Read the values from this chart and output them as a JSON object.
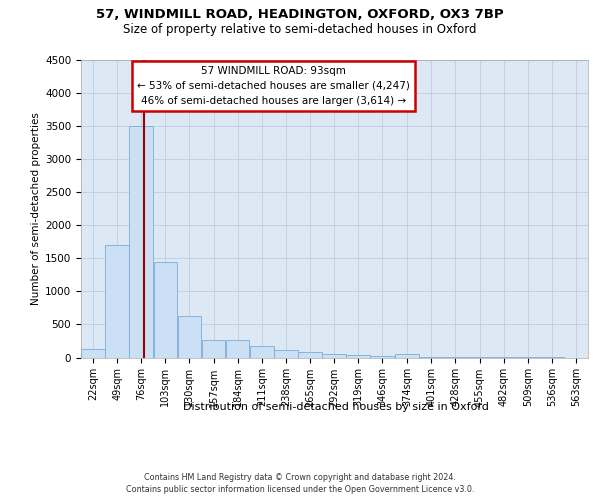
{
  "title_line1": "57, WINDMILL ROAD, HEADINGTON, OXFORD, OX3 7BP",
  "title_line2": "Size of property relative to semi-detached houses in Oxford",
  "xlabel": "Distribution of semi-detached houses by size in Oxford",
  "ylabel": "Number of semi-detached properties",
  "footer_line1": "Contains HM Land Registry data © Crown copyright and database right 2024.",
  "footer_line2": "Contains public sector information licensed under the Open Government Licence v3.0.",
  "annotation_title": "57 WINDMILL ROAD: 93sqm",
  "annotation_line1": "← 53% of semi-detached houses are smaller (4,247)",
  "annotation_line2": "46% of semi-detached houses are larger (3,614) →",
  "property_size": 93,
  "bin_starts": [
    22,
    49,
    76,
    103,
    130,
    157,
    184,
    211,
    238,
    265,
    292,
    319,
    346,
    374,
    401,
    428,
    455,
    482,
    509,
    536,
    563
  ],
  "bin_width": 27,
  "values": [
    130,
    1700,
    3500,
    1450,
    630,
    270,
    270,
    170,
    110,
    85,
    50,
    35,
    20,
    50,
    10,
    8,
    5,
    4,
    3,
    2,
    0
  ],
  "bar_color": "#cce0f5",
  "bar_edge_color": "#7aadd4",
  "vline_color": "#990000",
  "annotation_box_facecolor": "#ffffff",
  "annotation_box_edgecolor": "#cc0000",
  "grid_color": "#b8c8dc",
  "background_color": "#dce8f4",
  "ylim": [
    0,
    4500
  ],
  "yticks": [
    0,
    500,
    1000,
    1500,
    2000,
    2500,
    3000,
    3500,
    4000,
    4500
  ]
}
